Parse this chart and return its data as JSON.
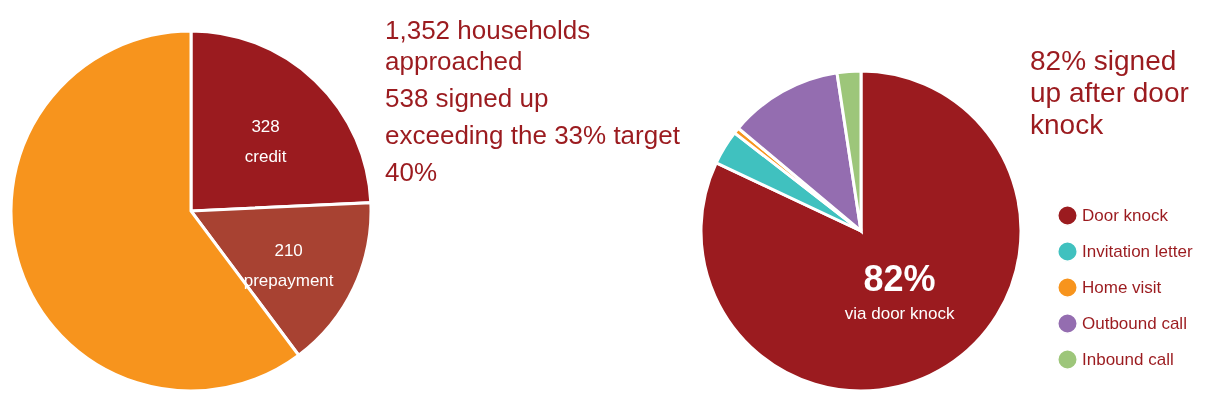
{
  "chart_data": [
    {
      "type": "pie",
      "categories": [
        "credit",
        "prepayment",
        null
      ],
      "values": [
        328,
        210,
        814
      ],
      "value_labels": [
        "328",
        "210",
        null
      ],
      "colors": [
        "#9b1b1f",
        "#a84232",
        "#f7941d"
      ],
      "annotations": [
        "1,352 households approached",
        "538 signed up",
        "exceeding the 33% target",
        "40%"
      ]
    },
    {
      "type": "pie",
      "categories": [
        "Door knock",
        "Invitation letter",
        "Home visit",
        "Outbound call",
        "Inbound call"
      ],
      "values": [
        82,
        3.5,
        0.6,
        11.5,
        2.4
      ],
      "value_labels": [
        "82%",
        null,
        null,
        null,
        null
      ],
      "colors": [
        "#9b1b1f",
        "#40c1bf",
        "#f7941d",
        "#946db0",
        "#9dc67a"
      ],
      "legend": "bottom right",
      "annotations": [
        {
          "text": "via door knock",
          "x": "Door knock"
        },
        "82% signed up after door knock"
      ]
    }
  ]
}
